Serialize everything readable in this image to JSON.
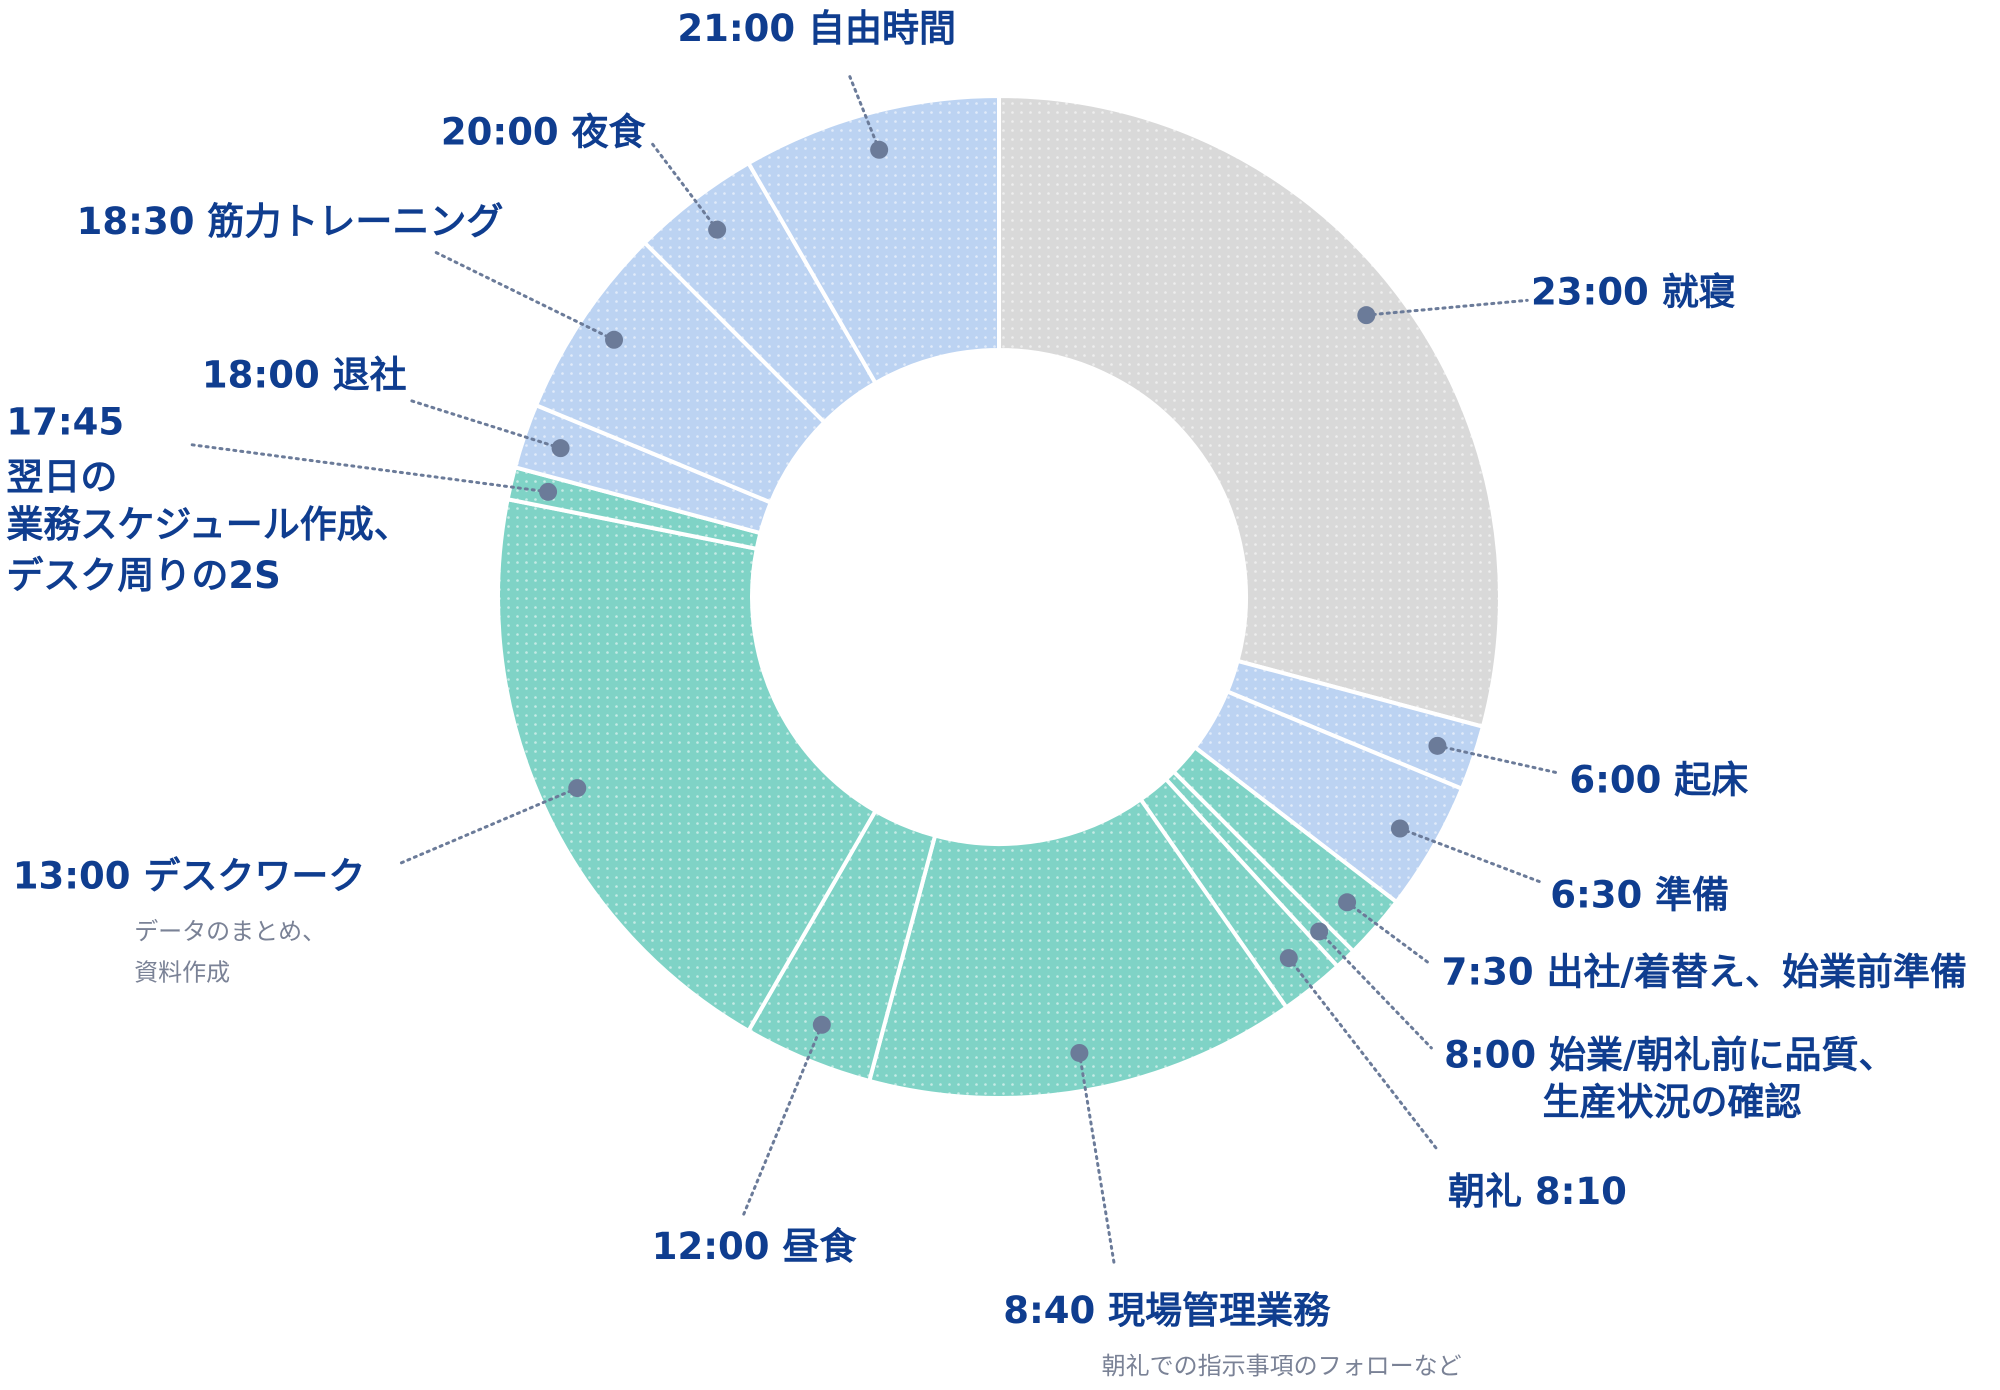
{
  "chart_data": {
    "type": "pie",
    "donut": true,
    "categories": [
      {
        "lines": [
          "23:00 就寝"
        ]
      },
      {
        "lines": [
          "6:00 起床"
        ]
      },
      {
        "lines": [
          "6:30 準備"
        ]
      },
      {
        "lines": [
          "7:30 出社/着替え、始業前準備"
        ]
      },
      {
        "lines": [
          "8:00 始業/朝礼前に品質、",
          "生産状況の確認"
        ]
      },
      {
        "lines": [
          "朝礼 8:10"
        ]
      },
      {
        "lines": [
          "8:40 現場管理業務"
        ],
        "note": [
          "朝礼での指示事項のフォローなど"
        ]
      },
      {
        "lines": [
          "12:00 昼食"
        ]
      },
      {
        "lines": [
          "13:00 デスクワーク"
        ],
        "note": [
          "データのまとめ、",
          "資料作成"
        ]
      },
      {
        "lines": [
          "17:45",
          "翌日の",
          "業務スケジュール作成、",
          "デスク周りの2S"
        ]
      },
      {
        "lines": [
          "18:00 退社"
        ]
      },
      {
        "lines": [
          "18:30 筋力トレーニング"
        ]
      },
      {
        "lines": [
          "20:00 夜食"
        ]
      },
      {
        "lines": [
          "21:00 自由時間"
        ]
      }
    ],
    "values": [
      420,
      30,
      60,
      30,
      10,
      30,
      200,
      60,
      285,
      15,
      30,
      90,
      60,
      120
    ],
    "colors": [
      "#d9d9d9",
      "#bcd3f2",
      "#bcd3f2",
      "#7fd3c6",
      "#7fd3c6",
      "#7fd3c6",
      "#7fd3c6",
      "#7fd3c6",
      "#7fd3c6",
      "#7fd3c6",
      "#bcd3f2",
      "#bcd3f2",
      "#bcd3f2",
      "#bcd3f2"
    ]
  }
}
